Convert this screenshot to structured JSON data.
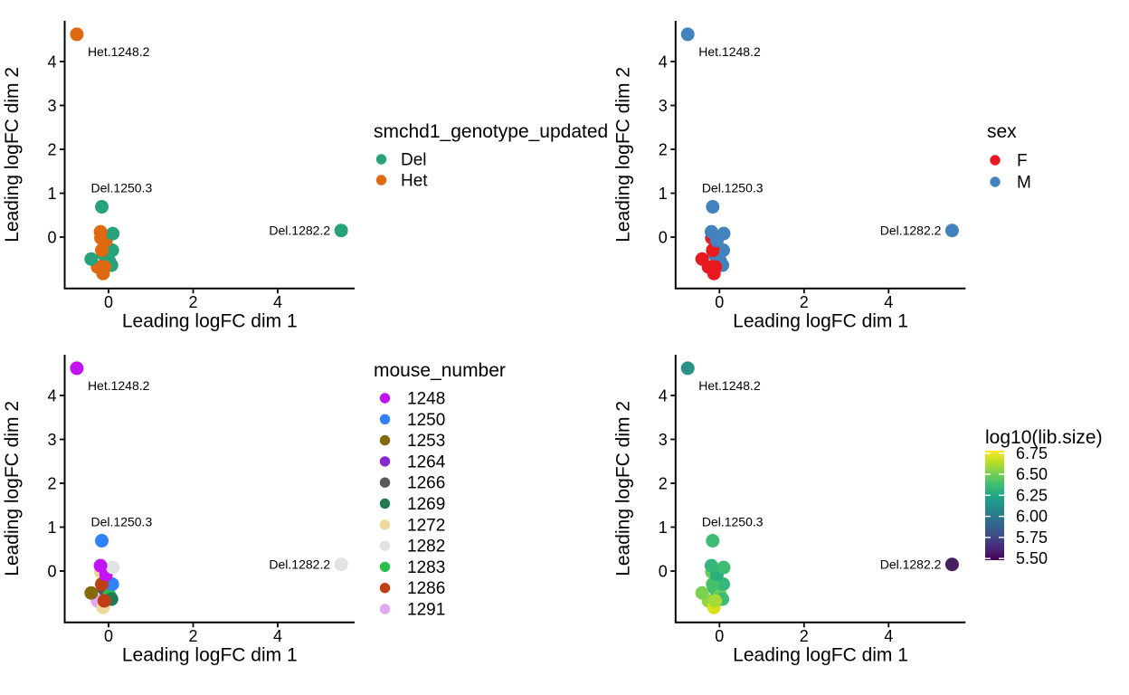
{
  "figure": {
    "description": "Four MDS scatter plots of RNA-seq samples, identical point positions, coloured by four different sample attributes",
    "background": "#ffffff"
  },
  "chart_data": {
    "type": "scatter",
    "axes": {
      "x_label": "Leading logFC dim 1",
      "y_label": "Leading logFC dim 2",
      "x_ticks": [
        0,
        2,
        4
      ],
      "y_ticks": [
        0,
        1,
        2,
        3,
        4
      ],
      "x_range": [
        -1.04,
        5.82
      ],
      "y_range": [
        -1.16,
        4.93
      ],
      "grid": false
    },
    "colors": {
      "genotype": {
        "Del": "#27A37C",
        "Het": "#DE6910"
      },
      "sex": {
        "F": "#E8191F",
        "M": "#4283BD"
      },
      "mouse": {
        "1248": "#C214F2",
        "1250": "#3380FF",
        "1253": "#85690B",
        "1264": "#8526CE",
        "1266": "#595959",
        "1269": "#1E7B4F",
        "1272": "#EFD79B",
        "1282": "#E2E2E2",
        "1283": "#2BBD4A",
        "1286": "#BE3E16",
        "1291": "#E2A8F5"
      }
    },
    "panels": [
      {
        "id": "genotype",
        "color_by": "genotype",
        "legend": {
          "type": "categorical",
          "title": "smchd1_genotype_updated",
          "items": [
            {
              "label": "Del",
              "color": "#27A37C"
            },
            {
              "label": "Het",
              "color": "#DE6910"
            }
          ]
        }
      },
      {
        "id": "sex",
        "color_by": "sex",
        "legend": {
          "type": "categorical",
          "title": "sex",
          "items": [
            {
              "label": "F",
              "color": "#E8191F"
            },
            {
              "label": "M",
              "color": "#4283BD"
            }
          ]
        }
      },
      {
        "id": "mouse_number",
        "color_by": "mouse",
        "legend": {
          "type": "categorical",
          "title": "mouse_number",
          "items": [
            {
              "label": "1248",
              "color": "#C214F2"
            },
            {
              "label": "1250",
              "color": "#3380FF"
            },
            {
              "label": "1253",
              "color": "#85690B"
            },
            {
              "label": "1264",
              "color": "#8526CE"
            },
            {
              "label": "1266",
              "color": "#595959"
            },
            {
              "label": "1269",
              "color": "#1E7B4F"
            },
            {
              "label": "1272",
              "color": "#EFD79B"
            },
            {
              "label": "1282",
              "color": "#E2E2E2"
            },
            {
              "label": "1283",
              "color": "#2BBD4A"
            },
            {
              "label": "1286",
              "color": "#BE3E16"
            },
            {
              "label": "1291",
              "color": "#E2A8F5"
            }
          ]
        }
      },
      {
        "id": "libsize",
        "color_by": "lib",
        "legend": {
          "type": "colorbar",
          "title": "log10(lib.size)",
          "tick_labels": [
            "6.75",
            "6.50",
            "6.25",
            "6.00",
            "5.75",
            "5.50"
          ],
          "tick_values": [
            6.75,
            6.5,
            6.25,
            6.0,
            5.75,
            5.5
          ],
          "domain": [
            5.48,
            6.78
          ],
          "gradient": [
            "#440154",
            "#482475",
            "#414487",
            "#355f8d",
            "#2a788e",
            "#21918c",
            "#22a884",
            "#44bf70",
            "#7ad151",
            "#bddf26",
            "#fde725"
          ]
        }
      }
    ],
    "samples": [
      {
        "x": -0.08,
        "y": -0.44,
        "mouse": "1264",
        "genotype": "Het",
        "sex": "F",
        "lib": 6.5,
        "lib_color": "#54C568"
      },
      {
        "x": -0.13,
        "y": -0.38,
        "mouse": "1266",
        "genotype": "Del",
        "sex": "M",
        "lib": 6.45,
        "lib_color": "#46C06B"
      },
      {
        "x": -0.18,
        "y": -0.02,
        "mouse": "1272",
        "genotype": "Het",
        "sex": "F",
        "lib": 6.55,
        "lib_color": "#67CC5C"
      },
      {
        "x": 0.02,
        "y": -0.55,
        "mouse": "1283",
        "genotype": "Del",
        "sex": "M",
        "lib": 6.55,
        "lib_color": "#67CC5C"
      },
      {
        "x": -0.26,
        "y": -0.68,
        "mouse": "1291",
        "genotype": "Het",
        "sex": "F",
        "lib": 6.65,
        "lib_color": "#90D743"
      },
      {
        "x": -0.13,
        "y": -0.83,
        "mouse": "1272",
        "genotype": "Het",
        "sex": "F",
        "lib": 6.78,
        "lib_color": "#D8E219"
      },
      {
        "x": -0.41,
        "y": -0.5,
        "mouse": "1253",
        "genotype": "Del",
        "sex": "F",
        "lib": 6.6,
        "lib_color": "#7AD151"
      },
      {
        "x": 0.07,
        "y": -0.64,
        "mouse": "1269",
        "genotype": "Del",
        "sex": "M",
        "lib": 6.4,
        "lib_color": "#3DBC74"
      },
      {
        "x": 0.09,
        "y": -0.3,
        "mouse": "1250",
        "genotype": "Del",
        "sex": "M",
        "lib": 6.35,
        "lib_color": "#35B779"
      },
      {
        "x": -0.1,
        "y": -0.68,
        "mouse": "1286",
        "genotype": "Het",
        "sex": "F",
        "lib": 6.7,
        "lib_color": "#A5DB36"
      },
      {
        "x": -0.16,
        "y": -0.3,
        "mouse": "1286",
        "genotype": "Het",
        "sex": "F",
        "lib": 6.45,
        "lib_color": "#46C06B"
      },
      {
        "x": -0.06,
        "y": -0.08,
        "mouse": "1248",
        "genotype": "Het",
        "sex": "M",
        "lib": 6.3,
        "lib_color": "#2AB07F"
      },
      {
        "x": 0.1,
        "y": 0.08,
        "mouse": "1282",
        "genotype": "Del",
        "sex": "M",
        "lib": 6.4,
        "lib_color": "#3DBC74"
      },
      {
        "x": -0.19,
        "y": 0.12,
        "mouse": "1248",
        "genotype": "Het",
        "sex": "M",
        "lib": 6.35,
        "lib_color": "#35B779"
      },
      {
        "x": -0.16,
        "y": 0.69,
        "mouse": "1250",
        "genotype": "Del",
        "sex": "M",
        "lib": 6.42,
        "lib_color": "#3EBC74",
        "label": {
          "text": "Del.1250.3",
          "anchor": "start",
          "dx": -12,
          "dy": -16
        }
      },
      {
        "x": 5.5,
        "y": 0.15,
        "mouse": "1282",
        "genotype": "Del",
        "sex": "M",
        "lib": 5.55,
        "lib_color": "#46205E",
        "label": {
          "text": "Del.1282.2",
          "anchor": "end",
          "dx": -12,
          "dy": 5
        }
      },
      {
        "x": -0.75,
        "y": 4.62,
        "mouse": "1248",
        "genotype": "Het",
        "sex": "M",
        "lib": 6.09,
        "lib_color": "#2A9187",
        "label": {
          "text": "Het.1248.2",
          "anchor": "start",
          "dx": 12,
          "dy": 24
        }
      }
    ]
  }
}
